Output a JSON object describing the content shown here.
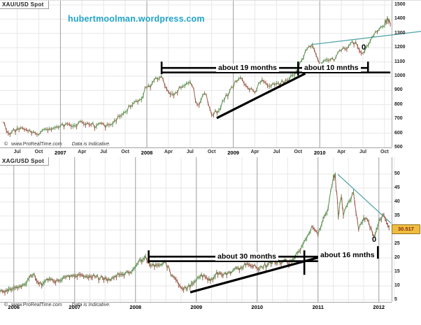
{
  "watermark": {
    "text": "hubertmoolman.wordpress.com",
    "color": "#22a5c8"
  },
  "colors": {
    "candle_up": "#5d9150",
    "candle_down": "#9d5a4a",
    "blue_trendline": "#58a7ad",
    "annotation": "#000000",
    "grid_light": "#e7e7e7",
    "grid_year": "#9e9e9e",
    "axis": "#aaaaaa",
    "price_tag_bg": "#eebd3f"
  },
  "chart_data": [
    {
      "type": "candlestick",
      "title": "XAU/USD Spot",
      "start": "2006-05",
      "interval": "monthly",
      "ylim": [
        470,
        1530
      ],
      "y_ticks": [
        1500,
        1400,
        1300,
        1200,
        1100,
        1000,
        900,
        800,
        700,
        600,
        500
      ],
      "x_ticks": [
        {
          "m": 2,
          "t": "Jul"
        },
        {
          "m": 5,
          "t": "Oct"
        },
        {
          "m": 8,
          "t": "2007",
          "year": true
        },
        {
          "m": 11,
          "t": "Apr"
        },
        {
          "m": 14,
          "t": "Jul"
        },
        {
          "m": 17,
          "t": "Oct"
        },
        {
          "m": 20,
          "t": "2008",
          "year": true
        },
        {
          "m": 23,
          "t": "Apr"
        },
        {
          "m": 26,
          "t": "Jul"
        },
        {
          "m": 29,
          "t": "Oct"
        },
        {
          "m": 32,
          "t": "2009",
          "year": true
        },
        {
          "m": 35,
          "t": "Apr"
        },
        {
          "m": 38,
          "t": "Jul"
        },
        {
          "m": 41,
          "t": "Oct"
        },
        {
          "m": 44,
          "t": "2010",
          "year": true
        },
        {
          "m": 47,
          "t": "Apr"
        },
        {
          "m": 50,
          "t": "Jul"
        },
        {
          "m": 53,
          "t": "Oct"
        }
      ],
      "points": [
        [
          0,
          680
        ],
        [
          1,
          590
        ],
        [
          2,
          635
        ],
        [
          3,
          625
        ],
        [
          4,
          600
        ],
        [
          5,
          590
        ],
        [
          6,
          630
        ],
        [
          7,
          635
        ],
        [
          8,
          650
        ],
        [
          9,
          665
        ],
        [
          10,
          655
        ],
        [
          11,
          680
        ],
        [
          12,
          660
        ],
        [
          13,
          650
        ],
        [
          14,
          665
        ],
        [
          15,
          660
        ],
        [
          16,
          720
        ],
        [
          17,
          750
        ],
        [
          18,
          800
        ],
        [
          19,
          835
        ],
        [
          20,
          920
        ],
        [
          21,
          970
        ],
        [
          22,
          1000
        ],
        [
          23,
          890
        ],
        [
          24,
          885
        ],
        [
          25,
          930
        ],
        [
          26,
          960
        ],
        [
          27,
          800
        ],
        [
          28,
          880
        ],
        [
          29,
          730
        ],
        [
          30,
          760
        ],
        [
          31,
          870
        ],
        [
          32,
          920
        ],
        [
          33,
          990
        ],
        [
          34,
          920
        ],
        [
          35,
          885
        ],
        [
          36,
          975
        ],
        [
          37,
          930
        ],
        [
          38,
          950
        ],
        [
          39,
          950
        ],
        [
          40,
          1005
        ],
        [
          41,
          1045
        ],
        [
          42,
          1175
        ],
        [
          43,
          1215
        ],
        [
          44,
          1080
        ],
        [
          45,
          1115
        ],
        [
          46,
          1110
        ],
        [
          47,
          1180
        ],
        [
          48,
          1210
        ],
        [
          49,
          1240
        ],
        [
          50,
          1160
        ],
        [
          51,
          1245
        ],
        [
          52,
          1310
        ],
        [
          53,
          1355
        ],
        [
          53.4,
          1412
        ],
        [
          53.8,
          1362
        ]
      ],
      "annotations": {
        "span1": {
          "label": "about 19 months",
          "from_m": 22.05,
          "to_m": 41
        },
        "span2": {
          "label": "about 10 mnths",
          "from_m": 41,
          "to_m": 50.7
        },
        "tail_m": 53.8,
        "bracket_price": 1058,
        "zero": "0",
        "trendline": {
          "from_m": 29.7,
          "from_p": 706,
          "to_m": 42,
          "to_p": 1019
        },
        "blue_line": {
          "from_m": 42.8,
          "from_p": 1221,
          "to_m": 58.2,
          "to_p": 1314
        }
      },
      "footer": {
        "copyright": "www.ProRealTime.com",
        "sym": "©",
        "disclaimer": "Data is Indicative."
      }
    },
    {
      "type": "candlestick",
      "title": "XAG/USD Spot",
      "start": "2005-10",
      "interval": "monthly",
      "ylim": [
        2.5,
        56
      ],
      "y_ticks": [
        50,
        45,
        40,
        35,
        30,
        25,
        20,
        15,
        10,
        5
      ],
      "price_tag": "30.517",
      "x_ticks": [
        {
          "m": 3,
          "t": "2006",
          "year": true
        },
        {
          "m": 15,
          "t": "2007",
          "year": true
        },
        {
          "m": 27,
          "t": "2008",
          "year": true
        },
        {
          "m": 39,
          "t": "2009",
          "year": true
        },
        {
          "m": 51,
          "t": "2010",
          "year": true
        },
        {
          "m": 63,
          "t": "2011",
          "year": true
        },
        {
          "m": 75,
          "t": "2012",
          "year": true
        }
      ],
      "points": [
        [
          0,
          7.6
        ],
        [
          1,
          8.0
        ],
        [
          2,
          8.8
        ],
        [
          3,
          9.3
        ],
        [
          4,
          9.6
        ],
        [
          5,
          10.4
        ],
        [
          6,
          12.6
        ],
        [
          7,
          14.3
        ],
        [
          8,
          10.6
        ],
        [
          9,
          11.3
        ],
        [
          10,
          12.5
        ],
        [
          11,
          11.5
        ],
        [
          12,
          11.8
        ],
        [
          13,
          13.2
        ],
        [
          14,
          13.0
        ],
        [
          15,
          13.4
        ],
        [
          16,
          14.0
        ],
        [
          17,
          13.3
        ],
        [
          18,
          13.6
        ],
        [
          19,
          13.2
        ],
        [
          20,
          12.6
        ],
        [
          21,
          12.9
        ],
        [
          22,
          12.0
        ],
        [
          23,
          13.5
        ],
        [
          24,
          14.2
        ],
        [
          25,
          14.5
        ],
        [
          26,
          14.8
        ],
        [
          27,
          16.9
        ],
        [
          28,
          19.3
        ],
        [
          29,
          20.6
        ],
        [
          30,
          17.2
        ],
        [
          31,
          17.6
        ],
        [
          32,
          17.5
        ],
        [
          33,
          18.4
        ],
        [
          34,
          13.7
        ],
        [
          35,
          12.2
        ],
        [
          36,
          9.3
        ],
        [
          37,
          8.9
        ],
        [
          38,
          10.8
        ],
        [
          39,
          11.9
        ],
        [
          40,
          14.1
        ],
        [
          41,
          13.1
        ],
        [
          42,
          12.5
        ],
        [
          43,
          15.0
        ],
        [
          44,
          14.0
        ],
        [
          45,
          13.8
        ],
        [
          46,
          14.9
        ],
        [
          47,
          16.4
        ],
        [
          48,
          16.3
        ],
        [
          49,
          18.0
        ],
        [
          50,
          17.0
        ],
        [
          51,
          16.2
        ],
        [
          52,
          16.5
        ],
        [
          53,
          17.5
        ],
        [
          54,
          18.6
        ],
        [
          55,
          18.4
        ],
        [
          56,
          18.7
        ],
        [
          57,
          18.0
        ],
        [
          58,
          19.3
        ],
        [
          59,
          21.8
        ],
        [
          60,
          24.5
        ],
        [
          61,
          28.2
        ],
        [
          62,
          30.9
        ],
        [
          63,
          28.0
        ],
        [
          64,
          33.9
        ],
        [
          65,
          37.9
        ],
        [
          66,
          48.5
        ],
        [
          66.4,
          49.7
        ],
        [
          67,
          34.5
        ],
        [
          67.6,
          42.0
        ],
        [
          68,
          35.0
        ],
        [
          69,
          40.1
        ],
        [
          70,
          43.5
        ],
        [
          71,
          30.0
        ],
        [
          72,
          34.3
        ],
        [
          73,
          32.8
        ],
        [
          74,
          27.8
        ],
        [
          75,
          33.2
        ],
        [
          76,
          35.3
        ],
        [
          77,
          30.8
        ]
      ],
      "annotations": {
        "span1": {
          "label": "about 30 months",
          "from_m": 29.6,
          "to_m": 60.3
        },
        "span2": {
          "label": "about 16 mnths",
          "from_m": 60.3,
          "to_m": 74.8
        },
        "tail_m": 63,
        "bracket_price": 20.45,
        "zero": "0",
        "trendline": {
          "from_m": 37.8,
          "from_p": 7.7,
          "to_m": 64,
          "to_p": 20.6
        },
        "blue_line": {
          "from_m": 66.9,
          "from_p": 49.9,
          "to_m": 77.4,
          "to_p": 32.4
        }
      },
      "footer": {
        "copyright": "www.ProRealTime.com",
        "sym": "©",
        "disclaimer": "Data is Indicative."
      }
    }
  ]
}
